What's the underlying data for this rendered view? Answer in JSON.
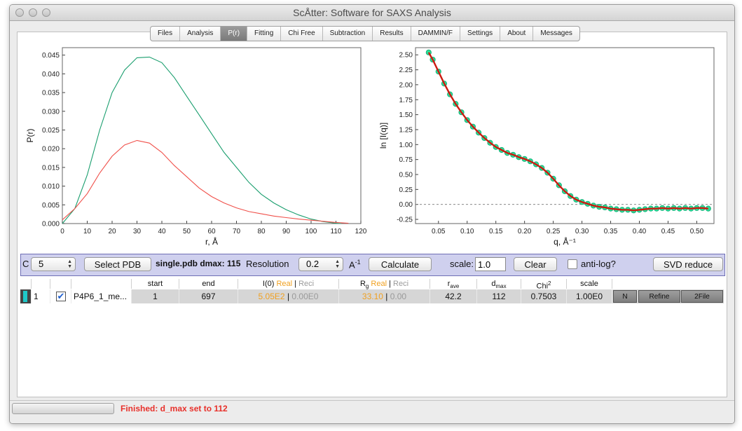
{
  "window": {
    "title": "ScÅtter: Software for SAXS Analysis"
  },
  "tabs": [
    {
      "label": "Files",
      "active": false
    },
    {
      "label": "Analysis",
      "active": false
    },
    {
      "label": "P(r)",
      "active": true
    },
    {
      "label": "Fitting",
      "active": false
    },
    {
      "label": "Chi Free",
      "active": false
    },
    {
      "label": "Subtraction",
      "active": false
    },
    {
      "label": "Results",
      "active": false
    },
    {
      "label": "DAMMIN/F",
      "active": false
    },
    {
      "label": "Settings",
      "active": false
    },
    {
      "label": "About",
      "active": false
    },
    {
      "label": "Messages",
      "active": false
    }
  ],
  "chart_data": [
    {
      "type": "line",
      "xlabel": "r, Å",
      "ylabel": "P(r)",
      "xlim": [
        0,
        120
      ],
      "ylim": [
        0,
        0.047
      ],
      "xticks": [
        0,
        10,
        20,
        30,
        40,
        50,
        60,
        70,
        80,
        90,
        100,
        110,
        120
      ],
      "yticks": [
        0.0,
        0.005,
        0.01,
        0.015,
        0.02,
        0.025,
        0.03,
        0.035,
        0.04,
        0.045
      ],
      "ytick_labels": [
        "0.000",
        "0.005",
        "0.010",
        "0.015",
        "0.020",
        "0.025",
        "0.030",
        "0.035",
        "0.040",
        "0.045"
      ],
      "series": [
        {
          "color": "#1a9e6e",
          "x": [
            0,
            5,
            10,
            15,
            20,
            25,
            30,
            35,
            40,
            45,
            50,
            55,
            60,
            65,
            70,
            75,
            80,
            85,
            90,
            95,
            100,
            105,
            110,
            112
          ],
          "y": [
            0,
            0.004,
            0.013,
            0.025,
            0.035,
            0.041,
            0.0443,
            0.0445,
            0.043,
            0.039,
            0.034,
            0.029,
            0.024,
            0.019,
            0.015,
            0.011,
            0.0078,
            0.0055,
            0.0037,
            0.0023,
            0.0012,
            0.0005,
            0.0001,
            0
          ]
        },
        {
          "color": "#f0504a",
          "x": [
            0,
            5,
            10,
            15,
            20,
            25,
            30,
            35,
            40,
            45,
            50,
            55,
            60,
            65,
            70,
            75,
            80,
            85,
            90,
            95,
            100,
            105,
            110,
            115
          ],
          "y": [
            0.001,
            0.004,
            0.008,
            0.0135,
            0.018,
            0.021,
            0.0222,
            0.0215,
            0.019,
            0.0155,
            0.0125,
            0.0095,
            0.0072,
            0.0055,
            0.0042,
            0.0032,
            0.0026,
            0.002,
            0.0016,
            0.0012,
            0.0009,
            0.0006,
            0.0003,
            0.0001
          ]
        }
      ]
    },
    {
      "type": "scatter",
      "xlabel": "q, Å⁻¹",
      "ylabel": "ln [I(q)]",
      "xlim": [
        0.01,
        0.53
      ],
      "ylim": [
        -0.32,
        2.62
      ],
      "xticks": [
        0.05,
        0.1,
        0.15,
        0.2,
        0.25,
        0.3,
        0.35,
        0.4,
        0.45,
        0.5
      ],
      "xtick_labels": [
        "0.05",
        "0.10",
        "0.15",
        "0.20",
        "0.25",
        "0.30",
        "0.35",
        "0.40",
        "0.45",
        "0.50"
      ],
      "yticks": [
        -0.25,
        0.0,
        0.25,
        0.5,
        0.75,
        1.0,
        1.25,
        1.5,
        1.75,
        2.0,
        2.25,
        2.5
      ],
      "ytick_labels": [
        "-0.25",
        "0.00",
        "0.25",
        "0.50",
        "0.75",
        "1.00",
        "1.25",
        "1.50",
        "1.75",
        "2.00",
        "2.25",
        "2.50"
      ],
      "zero_line": true,
      "series": [
        {
          "color": "#2ee09a",
          "x": [
            0.033,
            0.04,
            0.05,
            0.06,
            0.07,
            0.08,
            0.09,
            0.1,
            0.11,
            0.12,
            0.13,
            0.14,
            0.15,
            0.16,
            0.17,
            0.18,
            0.19,
            0.2,
            0.21,
            0.22,
            0.23,
            0.24,
            0.25,
            0.26,
            0.27,
            0.28,
            0.29,
            0.3,
            0.31,
            0.32,
            0.33,
            0.34,
            0.35,
            0.36,
            0.37,
            0.38,
            0.39,
            0.4,
            0.41,
            0.42,
            0.43,
            0.44,
            0.45,
            0.46,
            0.47,
            0.48,
            0.49,
            0.5,
            0.51,
            0.52
          ],
          "y": [
            2.54,
            2.42,
            2.22,
            2.02,
            1.84,
            1.68,
            1.54,
            1.41,
            1.3,
            1.2,
            1.11,
            1.03,
            0.96,
            0.91,
            0.86,
            0.83,
            0.79,
            0.76,
            0.72,
            0.67,
            0.61,
            0.53,
            0.43,
            0.32,
            0.22,
            0.14,
            0.08,
            0.04,
            0.01,
            -0.02,
            -0.04,
            -0.05,
            -0.07,
            -0.08,
            -0.09,
            -0.09,
            -0.1,
            -0.09,
            -0.08,
            -0.07,
            -0.07,
            -0.06,
            -0.07,
            -0.06,
            -0.07,
            -0.06,
            -0.07,
            -0.06,
            -0.06,
            -0.07
          ]
        },
        {
          "color": "#cc1a10",
          "x": [
            0.033,
            0.04,
            0.05,
            0.06,
            0.07,
            0.08,
            0.09,
            0.1,
            0.11,
            0.12,
            0.13,
            0.14,
            0.15,
            0.16,
            0.17,
            0.18,
            0.19,
            0.2,
            0.21,
            0.22,
            0.23,
            0.24,
            0.25,
            0.26,
            0.27,
            0.28,
            0.29,
            0.3,
            0.31,
            0.32,
            0.33,
            0.34,
            0.35,
            0.36,
            0.37,
            0.38,
            0.39,
            0.4,
            0.41,
            0.42,
            0.43,
            0.44,
            0.45,
            0.46,
            0.47,
            0.48,
            0.49,
            0.5,
            0.51,
            0.52
          ],
          "y": [
            2.54,
            2.42,
            2.22,
            2.02,
            1.84,
            1.68,
            1.54,
            1.41,
            1.3,
            1.2,
            1.11,
            1.03,
            0.96,
            0.91,
            0.86,
            0.83,
            0.79,
            0.76,
            0.72,
            0.67,
            0.61,
            0.53,
            0.43,
            0.32,
            0.22,
            0.14,
            0.08,
            0.04,
            0.01,
            -0.02,
            -0.04,
            -0.05,
            -0.07,
            -0.08,
            -0.09,
            -0.09,
            -0.1,
            -0.09,
            -0.08,
            -0.07,
            -0.07,
            -0.06,
            -0.07,
            -0.06,
            -0.07,
            -0.06,
            -0.07,
            -0.06,
            -0.06,
            -0.07
          ]
        }
      ]
    }
  ],
  "controls": {
    "c_label": "C",
    "c_value": "5",
    "select_pdb": "Select PDB",
    "pdb_info": "single.pdb dmax: 115",
    "resolution_label": "Resolution",
    "resolution_value": "0.2",
    "resolution_unit": "A",
    "resolution_unit_sup": "-1",
    "calculate": "Calculate",
    "scale_label": "scale:",
    "scale_value": "1.0",
    "clear": "Clear",
    "antilog_label": "anti-log?",
    "antilog_checked": false,
    "svd": "SVD reduce"
  },
  "table": {
    "headers": {
      "start": "start",
      "end": "end",
      "i0": "I(0)",
      "i0_real": "Real",
      "i0_reci": "Reci",
      "rg": "R",
      "rg_sub": "g",
      "rg_real": "Real",
      "rg_reci": "Reci",
      "rave": "r",
      "rave_sub": "ave",
      "dmax": "d",
      "dmax_sub": "max",
      "chi": "Chi",
      "chi_sup": "2",
      "scale": "scale"
    },
    "row": {
      "index": "1",
      "selected": true,
      "name": "P4P6_1_me...",
      "start": "1",
      "end": "697",
      "i0_real": "5.05E2",
      "i0_reci": "0.00E0",
      "rg_real": "33.10",
      "rg_reci": "0.00",
      "rave": "42.2",
      "dmax": "112",
      "chi": "0.7503",
      "scale": "1.00E0",
      "btn_n": "N",
      "btn_refine": "Refine",
      "btn_2file": "2File",
      "color": "#1ec8c8"
    },
    "sep": "|"
  },
  "status": {
    "message": "Finished: d_max set to 112"
  }
}
